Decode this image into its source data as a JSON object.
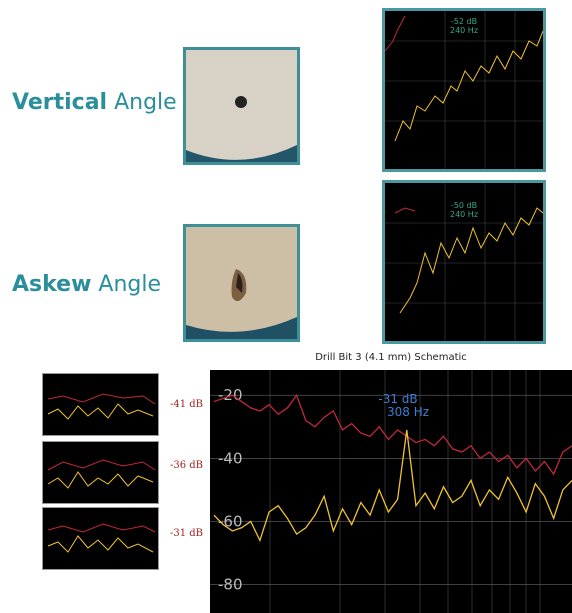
{
  "panels": [
    {
      "label_bold": "Vertical",
      "label_rest": "Angle",
      "level": "-52 dB",
      "freq": "240 Hz"
    },
    {
      "label_bold": "Askew",
      "label_rest": "Angle",
      "level": "-50 dB",
      "freq": "240 Hz"
    }
  ],
  "comparison": [
    "-41 dB",
    "-36 dB",
    "-31 dB"
  ],
  "chart_data": {
    "type": "line",
    "title": "Drill Bit 3 (4.1 mm) Schematic",
    "annotation": {
      "level": "-31 dB",
      "freq": "308 Hz"
    },
    "ylim": [
      -89,
      -12
    ],
    "yticks": [
      -20,
      -40,
      -60,
      -80
    ],
    "grid": true,
    "series": [
      {
        "color": "#c0283c",
        "values": [
          -22,
          -21,
          -20,
          -22,
          -24,
          -25,
          -23,
          -26,
          -24,
          -20,
          -28,
          -30,
          -27,
          -25,
          -31,
          -29,
          -32,
          -33,
          -30,
          -34,
          -31,
          -33,
          -35,
          -34,
          -36,
          -33,
          -37,
          -38,
          -36,
          -40,
          -38,
          -41,
          -39,
          -43,
          -40,
          -44,
          -41,
          -45,
          -38,
          -36
        ]
      },
      {
        "color": "#f0c330",
        "values": [
          -58,
          -61,
          -63,
          -62,
          -60,
          -66,
          -57,
          -55,
          -59,
          -64,
          -62,
          -58,
          -52,
          -63,
          -56,
          -61,
          -54,
          -58,
          -50,
          -57,
          -53,
          -31,
          -55,
          -51,
          -56,
          -49,
          -54,
          -52,
          -47,
          -55,
          -50,
          -53,
          -46,
          -51,
          -57,
          -48,
          -52,
          -59,
          -50,
          -47
        ]
      }
    ]
  }
}
